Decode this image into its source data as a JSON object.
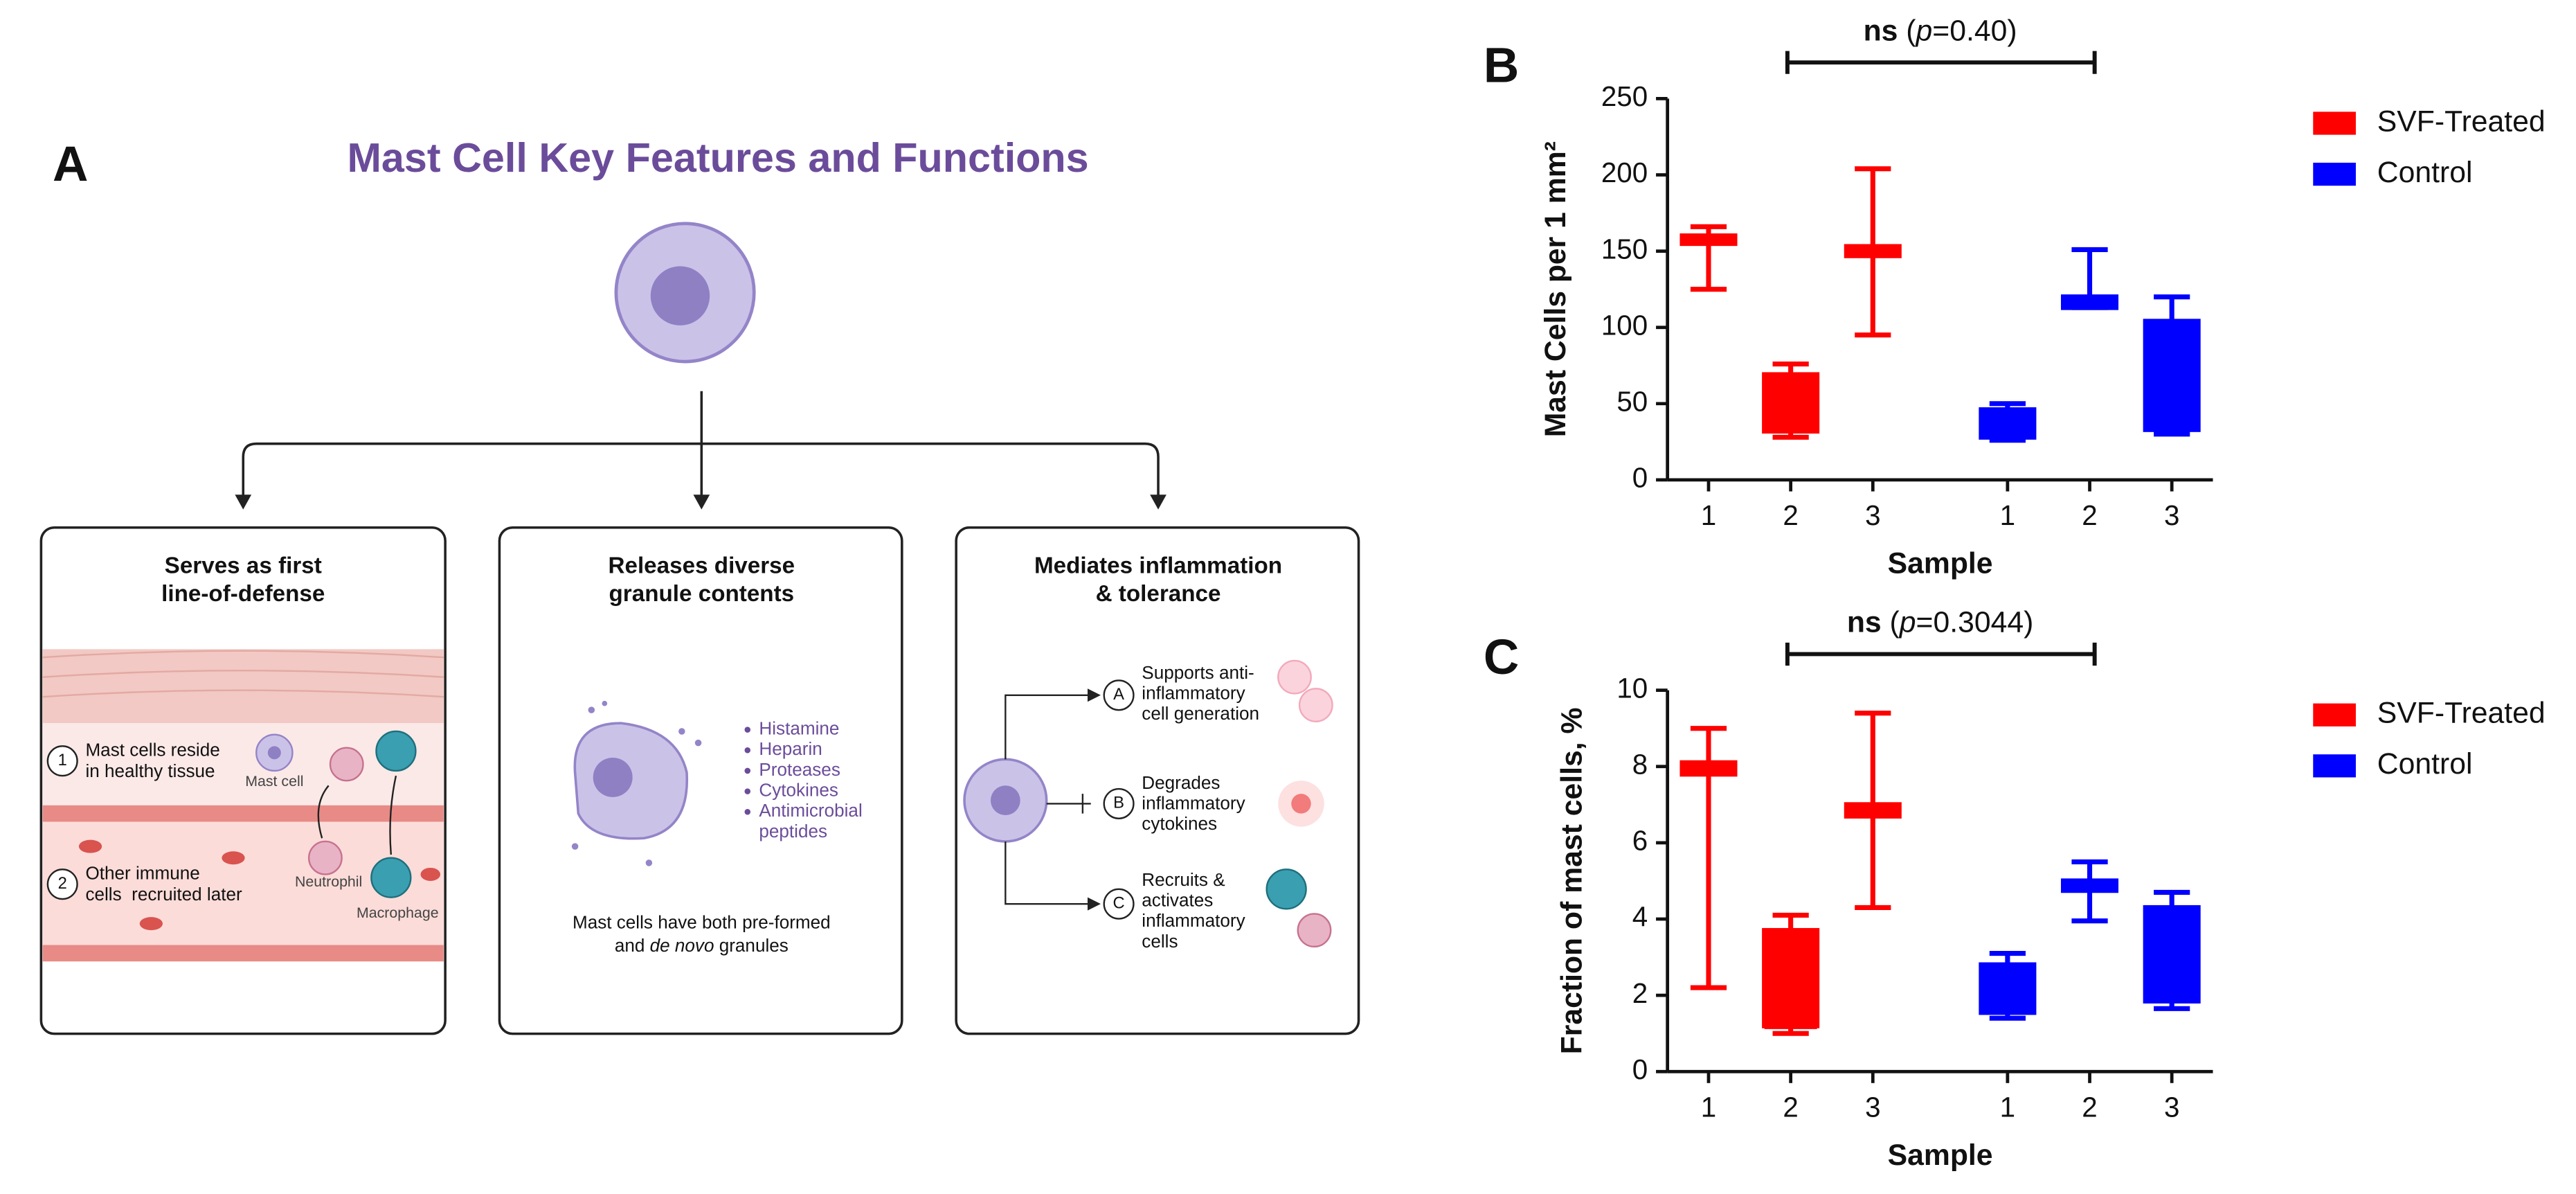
{
  "diagram": {
    "label": "A",
    "title": "Mast Cell Key Features and Functions",
    "panels": [
      {
        "title": [
          "Serves as first",
          "line-of-defense"
        ],
        "steps": [
          {
            "number": "1",
            "lines": [
              "Mast cells reside",
              "in healthy tissue"
            ]
          },
          {
            "number": "2",
            "lines": [
              "Other immune",
              "cells  recruited later"
            ]
          }
        ],
        "cells": [
          "Mast cell",
          "Neutrophil",
          "Macrophage"
        ]
      },
      {
        "title": [
          "Releases diverse",
          "granule contents"
        ],
        "contents": [
          [
            "Histamine"
          ],
          [
            "Heparin"
          ],
          [
            "Proteases"
          ],
          [
            "Cytokines"
          ],
          [
            "Antimicrobial",
            "peptides"
          ]
        ],
        "caption": {
          "line1": "Mast cells have both pre-formed",
          "line2": [
            "and ",
            "de novo",
            " granules"
          ]
        }
      },
      {
        "title": [
          "Mediates inflammation",
          "& tolerance"
        ],
        "items": [
          {
            "letter": "A",
            "lines": [
              "Supports anti-",
              "inflammatory",
              "cell generation"
            ]
          },
          {
            "letter": "B",
            "lines": [
              "Degrades",
              "inflammatory",
              "cytokines"
            ]
          },
          {
            "letter": "C",
            "lines": [
              "Recruits &",
              "activates",
              "inflammatory",
              "cells"
            ]
          }
        ]
      }
    ]
  },
  "chart_data": [
    {
      "type": "box",
      "panel_label": "B",
      "xlabel": "Sample",
      "ylabel": "Mast Cells per 1 mm²",
      "categories": [
        "1",
        "2",
        "3"
      ],
      "ylim": [
        0,
        250
      ],
      "yticks": [
        0,
        50,
        100,
        150,
        200,
        250
      ],
      "legend": "right",
      "annotation": [
        {
          "text": "ns",
          "bold": true
        },
        {
          "text": " ("
        },
        {
          "text": "p",
          "italic": true
        },
        {
          "text": "=0.40)"
        }
      ],
      "series": [
        {
          "name": "SVF-Treated",
          "color": "#ff0000",
          "boxes": [
            {
              "min": 125,
              "q1": 155,
              "median": 157,
              "q3": 160,
              "max": 166
            },
            {
              "min": 28,
              "q1": 32,
              "median": 33,
              "q3": 69,
              "max": 76
            },
            {
              "min": 95,
              "q1": 147,
              "median": 150,
              "q3": 153,
              "max": 204
            }
          ]
        },
        {
          "name": "Control",
          "color": "#0000ff",
          "boxes": [
            {
              "min": 26,
              "q1": 28,
              "median": 30,
              "q3": 46,
              "max": 50
            },
            {
              "min": 113,
              "q1": 113,
              "median": 115,
              "q3": 120,
              "max": 151
            },
            {
              "min": 30,
              "q1": 33,
              "median": 35,
              "q3": 104,
              "max": 120
            }
          ]
        }
      ]
    },
    {
      "type": "box",
      "panel_label": "C",
      "xlabel": "Sample",
      "ylabel": "Fraction of mast cells, %",
      "categories": [
        "1",
        "2",
        "3"
      ],
      "ylim": [
        0,
        10
      ],
      "yticks": [
        0,
        2,
        4,
        6,
        8,
        10
      ],
      "legend": "right",
      "annotation": [
        {
          "text": "ns",
          "bold": true
        },
        {
          "text": " ("
        },
        {
          "text": "p",
          "italic": true
        },
        {
          "text": "=0.3044)"
        }
      ],
      "series": [
        {
          "name": "SVF-Treated",
          "color": "#ff0000",
          "boxes": [
            {
              "min": 2.2,
              "q1": 7.8,
              "median": 7.9,
              "q3": 8.1,
              "max": 9.0
            },
            {
              "min": 1.0,
              "q1": 1.2,
              "median": 1.2,
              "q3": 3.7,
              "max": 4.1
            },
            {
              "min": 4.3,
              "q1": 6.7,
              "median": 6.85,
              "q3": 7.0,
              "max": 9.4
            }
          ]
        },
        {
          "name": "Control",
          "color": "#0000ff",
          "boxes": [
            {
              "min": 1.4,
              "q1": 1.55,
              "median": 1.6,
              "q3": 2.8,
              "max": 3.1
            },
            {
              "min": 3.95,
              "q1": 4.75,
              "median": 4.85,
              "q3": 5.0,
              "max": 5.5
            },
            {
              "min": 1.65,
              "q1": 1.85,
              "median": 1.9,
              "q3": 4.3,
              "max": 4.7
            }
          ]
        }
      ]
    }
  ]
}
